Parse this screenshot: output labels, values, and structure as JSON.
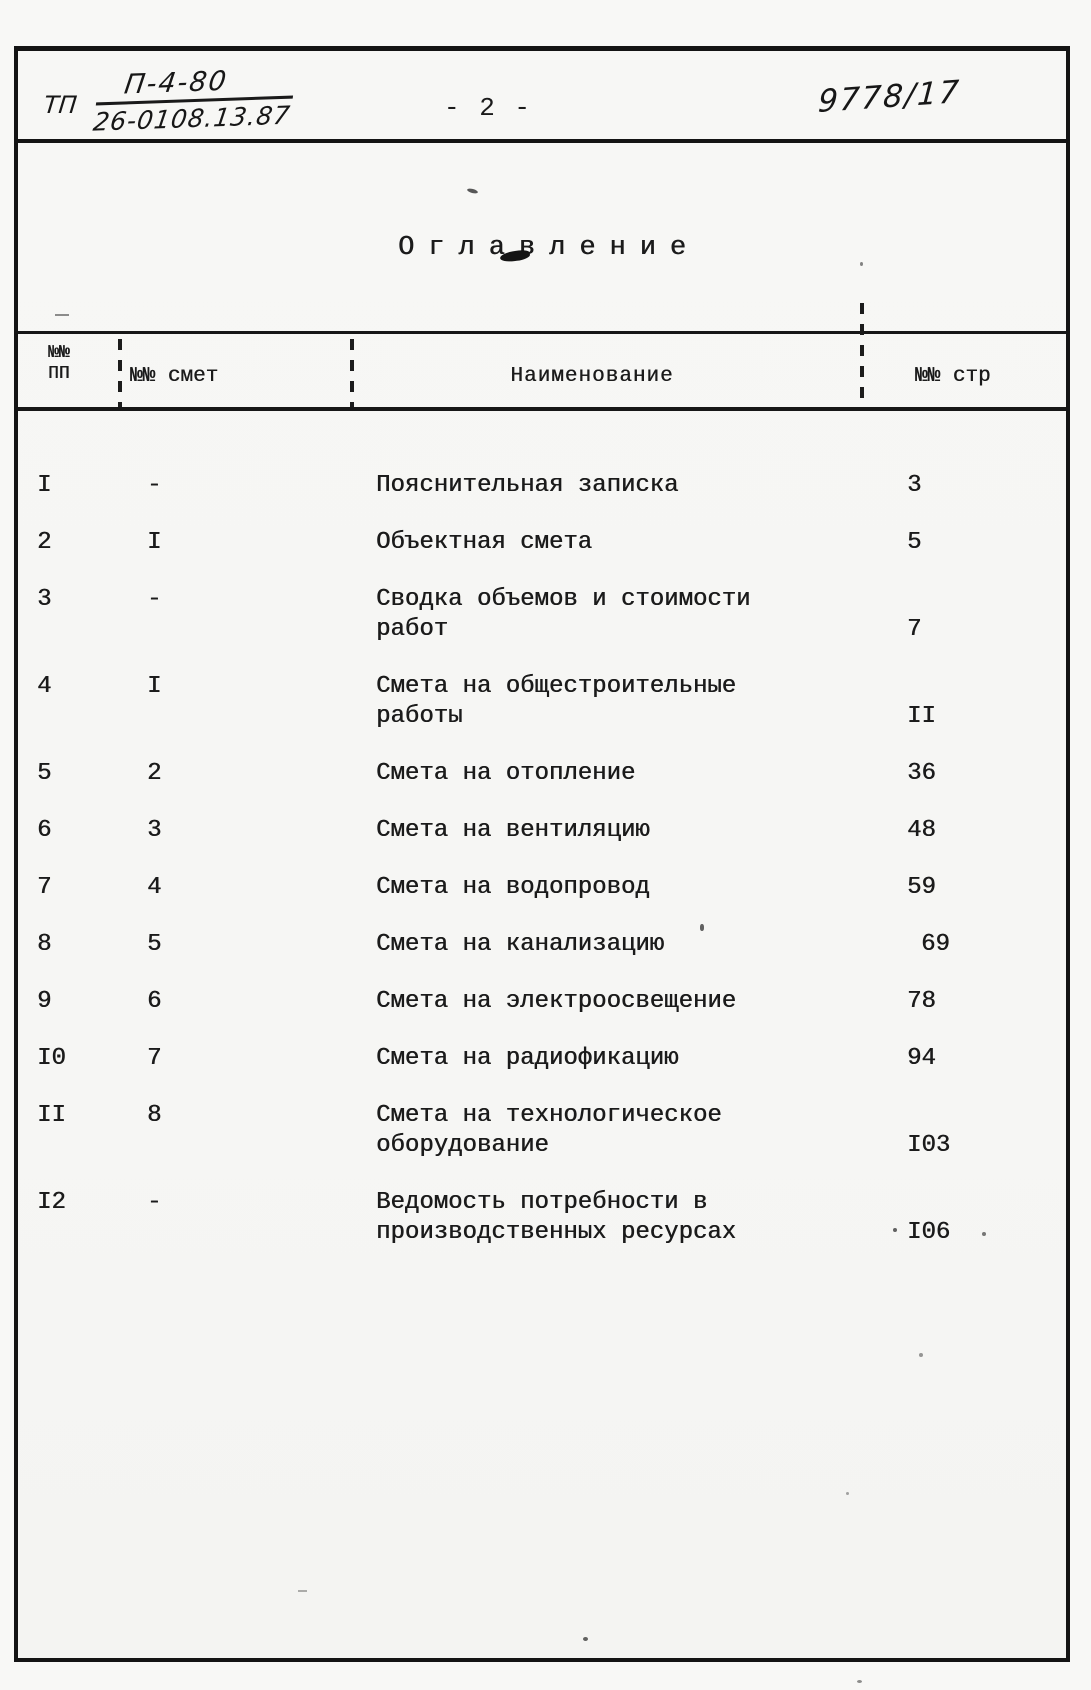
{
  "doc_header": {
    "series_label": "ТП",
    "code_numerator": "П-4-80",
    "code_denominator": "26-0108.13.87",
    "page_number": "- 2 -",
    "archive_number": "9778/17"
  },
  "title": "Оглавление",
  "table": {
    "header": {
      "col_pp_line1": "№№",
      "col_pp_line2": "ПП",
      "col_smeta": "№№ смет",
      "col_name": "Наименование",
      "col_page": "№№ стр"
    },
    "rows": [
      {
        "pp": "I",
        "smeta": "-",
        "name_lines": [
          "Пояснительная записка"
        ],
        "page": "3"
      },
      {
        "pp": "2",
        "smeta": "I",
        "name_lines": [
          "Объектная смета"
        ],
        "page": "5"
      },
      {
        "pp": "3",
        "smeta": "-",
        "name_lines": [
          "Сводка объемов и стоимости",
          "работ"
        ],
        "page": "7"
      },
      {
        "pp": "4",
        "smeta": "I",
        "name_lines": [
          "Смета на общестроительные",
          "работы"
        ],
        "page": "II"
      },
      {
        "pp": "5",
        "smeta": "2",
        "name_lines": [
          "Смета на отопление"
        ],
        "page": "36"
      },
      {
        "pp": "6",
        "smeta": "3",
        "name_lines": [
          "Смета на вентиляцию"
        ],
        "page": "48"
      },
      {
        "pp": "7",
        "smeta": "4",
        "name_lines": [
          "Смета на водопровод"
        ],
        "page": "59"
      },
      {
        "pp": "8",
        "smeta": "5",
        "name_lines": [
          "Смета на канализацию"
        ],
        "page": "69"
      },
      {
        "pp": "9",
        "smeta": "6",
        "name_lines": [
          "Смета на электроосвещение"
        ],
        "page": "78"
      },
      {
        "pp": "I0",
        "smeta": "7",
        "name_lines": [
          "Смета на радиофикацию"
        ],
        "page": "94"
      },
      {
        "pp": "II",
        "smeta": "8",
        "name_lines": [
          "Смета на технологическое",
          "оборудование"
        ],
        "page": "I03"
      },
      {
        "pp": "I2",
        "smeta": "-",
        "name_lines": [
          "Ведомость потребности в",
          "производственных ресурсах"
        ],
        "page": "I06"
      }
    ]
  }
}
